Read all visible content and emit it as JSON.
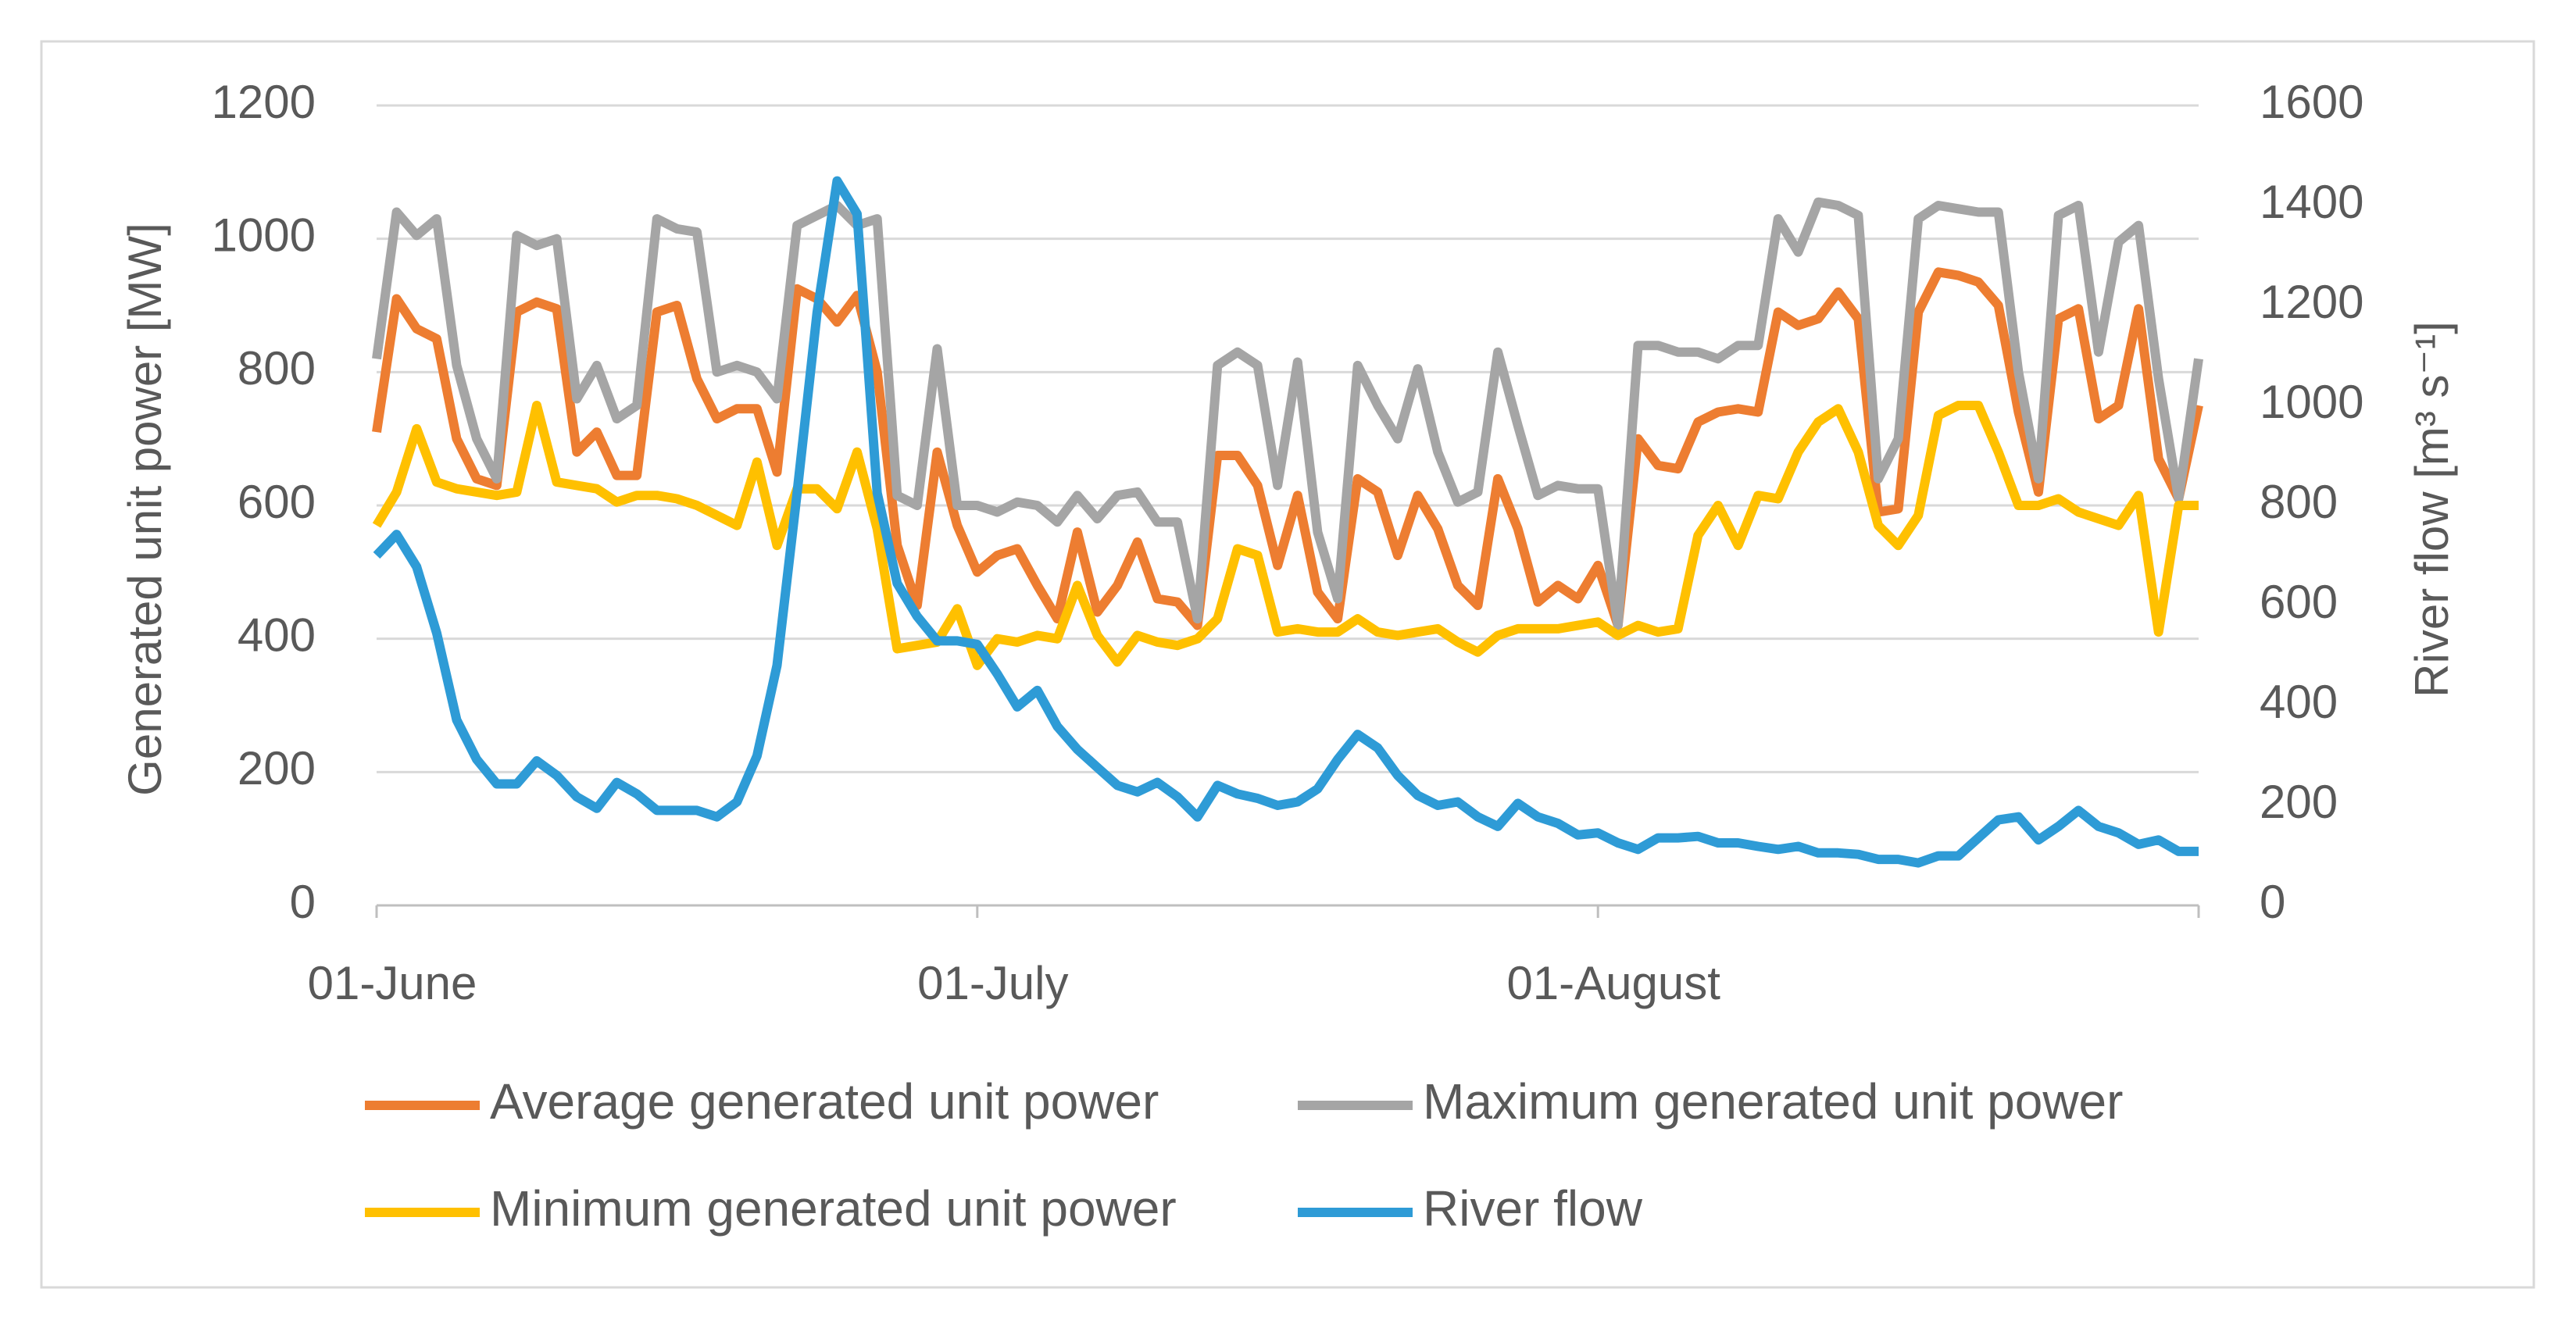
{
  "chart_data": {
    "type": "line",
    "y_label": "Generated unit power [MW]",
    "y2_label": "River flow [m³ s⁻¹]",
    "categories": [
      "01-June",
      null,
      null,
      null,
      null,
      null,
      null,
      null,
      null,
      null,
      null,
      null,
      null,
      null,
      null,
      null,
      null,
      null,
      null,
      null,
      null,
      null,
      null,
      null,
      null,
      null,
      null,
      null,
      null,
      null,
      "01-July",
      null,
      null,
      null,
      null,
      null,
      null,
      null,
      null,
      null,
      null,
      null,
      null,
      null,
      null,
      null,
      null,
      null,
      null,
      null,
      null,
      null,
      null,
      null,
      null,
      null,
      null,
      null,
      null,
      null,
      null,
      "01-August",
      null,
      null,
      null,
      null,
      null,
      null,
      null,
      null,
      null,
      null,
      null,
      null,
      null,
      null,
      null,
      null,
      null,
      null,
      null,
      null,
      null,
      null,
      null,
      null,
      null,
      null,
      null,
      null,
      null,
      null
    ],
    "ylim": [
      0,
      1200
    ],
    "yticks": [
      0,
      200,
      400,
      600,
      800,
      1000,
      1200
    ],
    "y2lim": [
      0,
      1600
    ],
    "y2ticks": [
      0,
      200,
      400,
      600,
      800,
      1000,
      1200,
      1400,
      1600
    ],
    "grid": true,
    "legend": "bottom",
    "series": [
      {
        "name": "Average generated unit power",
        "color": "#ED7D31",
        "values": [
          710,
          910,
          865,
          850,
          700,
          640,
          630,
          890,
          905,
          895,
          680,
          710,
          645,
          645,
          890,
          900,
          790,
          730,
          745,
          745,
          650,
          925,
          910,
          875,
          915,
          800,
          540,
          450,
          680,
          570,
          500,
          525,
          535,
          480,
          430,
          560,
          440,
          480,
          545,
          460,
          455,
          420,
          675,
          675,
          630,
          510,
          615,
          470,
          430,
          640,
          620,
          525,
          615,
          565,
          480,
          450,
          640,
          565,
          455,
          480,
          460,
          510,
          420,
          700,
          660,
          655,
          725,
          740,
          745,
          740,
          890,
          870,
          880,
          920,
          880,
          590,
          595,
          890,
          950,
          945,
          935,
          900,
          740,
          620,
          880,
          895,
          730,
          750,
          895,
          670,
          610,
          750
        ]
      },
      {
        "name": "Maximum generated unit power",
        "color": "#A5A5A5",
        "values": [
          820,
          1040,
          1005,
          1030,
          810,
          700,
          640,
          1005,
          990,
          1000,
          760,
          810,
          730,
          750,
          1030,
          1015,
          1010,
          800,
          810,
          800,
          760,
          1020,
          1035,
          1050,
          1020,
          1030,
          615,
          600,
          835,
          600,
          600,
          590,
          605,
          600,
          575,
          615,
          580,
          615,
          620,
          575,
          575,
          430,
          810,
          830,
          810,
          630,
          815,
          560,
          460,
          810,
          750,
          700,
          805,
          680,
          605,
          620,
          830,
          720,
          615,
          630,
          625,
          625,
          420,
          840,
          840,
          830,
          830,
          820,
          840,
          840,
          1030,
          980,
          1055,
          1050,
          1035,
          640,
          700,
          1030,
          1050,
          1045,
          1040,
          1040,
          800,
          640,
          1035,
          1050,
          830,
          995,
          1020,
          790,
          610,
          820
        ]
      },
      {
        "name": "Minimum generated unit power",
        "color": "#FFC000",
        "values": [
          570,
          620,
          715,
          635,
          625,
          620,
          615,
          620,
          750,
          635,
          630,
          625,
          605,
          615,
          615,
          610,
          600,
          585,
          570,
          665,
          540,
          625,
          625,
          595,
          680,
          565,
          385,
          390,
          395,
          445,
          360,
          400,
          395,
          405,
          400,
          480,
          405,
          365,
          405,
          395,
          390,
          400,
          430,
          535,
          525,
          410,
          415,
          410,
          410,
          430,
          410,
          405,
          410,
          415,
          395,
          380,
          405,
          415,
          415,
          415,
          420,
          425,
          405,
          420,
          410,
          415,
          555,
          600,
          540,
          615,
          610,
          680,
          725,
          745,
          680,
          570,
          540,
          585,
          735,
          750,
          750,
          680,
          600,
          600,
          610,
          590,
          580,
          570,
          615,
          410,
          600,
          600
        ]
      },
      {
        "name": "River flow",
        "color": "#2E9BD6",
        "axis": "y2",
        "values": [
          700,
          742,
          677,
          545,
          371,
          292,
          243,
          243,
          289,
          260,
          217,
          194,
          246,
          223,
          190,
          190,
          190,
          177,
          207,
          299,
          480,
          825,
          1186,
          1449,
          1383,
          825,
          644,
          578,
          529,
          529,
          522,
          463,
          397,
          430,
          358,
          312,
          276,
          240,
          227,
          246,
          217,
          177,
          240,
          223,
          214,
          200,
          207,
          233,
          292,
          342,
          315,
          260,
          220,
          200,
          207,
          177,
          158,
          204,
          177,
          164,
          141,
          145,
          125,
          112,
          135,
          135,
          138,
          125,
          125,
          118,
          112,
          118,
          105,
          105,
          102,
          92,
          92,
          85,
          99,
          99,
          135,
          171,
          177,
          131,
          158,
          190,
          158,
          145,
          122,
          131,
          108,
          108
        ]
      }
    ]
  }
}
